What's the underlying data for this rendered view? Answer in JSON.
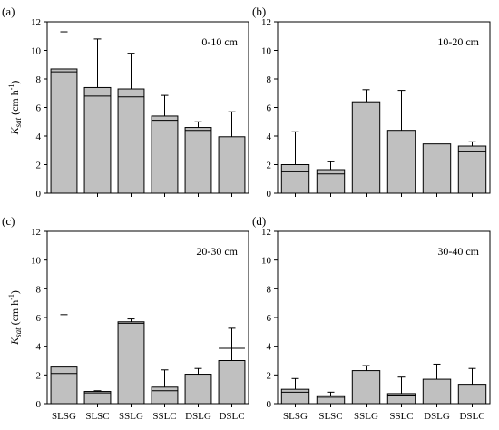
{
  "chart_data": [
    {
      "type": "bar",
      "panel": "(a)",
      "depth": "0-10 cm",
      "ylabel": "K_sat (cm h^-1)",
      "ylim": [
        0,
        12
      ],
      "yticks": [
        0,
        2,
        4,
        6,
        8,
        10,
        12
      ],
      "categories": [
        "SLSG",
        "SLSC",
        "SSLG",
        "SSLC",
        "DSLG",
        "DSLC"
      ],
      "values": [
        8.7,
        7.4,
        7.3,
        5.4,
        4.6,
        3.95
      ],
      "error": [
        2.6,
        3.4,
        2.5,
        1.45,
        0.4,
        1.75
      ],
      "inner_lines": [
        8.5,
        6.8,
        6.75,
        5.1,
        4.4,
        null
      ],
      "bar_color": "#c0c0c0"
    },
    {
      "type": "bar",
      "panel": "(b)",
      "depth": "10-20 cm",
      "ylabel": "",
      "ylim": [
        0,
        12
      ],
      "yticks": [
        0,
        2,
        4,
        6,
        8,
        10,
        12
      ],
      "categories": [
        "SLSG",
        "SLSC",
        "SSLG",
        "SSLC",
        "DSLG",
        "DSLC"
      ],
      "values": [
        2.0,
        1.65,
        6.4,
        4.4,
        3.45,
        3.3
      ],
      "error": [
        2.3,
        0.55,
        0.85,
        2.8,
        0.0,
        0.3
      ],
      "inner_lines": [
        1.5,
        1.35,
        null,
        null,
        null,
        2.9
      ],
      "bar_color": "#c0c0c0"
    },
    {
      "type": "bar",
      "panel": "(c)",
      "depth": "20-30 cm",
      "ylabel": "K_sat (cm h^-1)",
      "ylim": [
        0,
        12
      ],
      "yticks": [
        0,
        2,
        4,
        6,
        8,
        10,
        12
      ],
      "categories": [
        "SLSG",
        "SLSC",
        "SSLG",
        "SSLC",
        "DSLG",
        "DSLC"
      ],
      "values": [
        2.55,
        0.85,
        5.7,
        1.15,
        2.05,
        3.0
      ],
      "error": [
        3.65,
        0.05,
        0.2,
        1.2,
        0.4,
        2.25
      ],
      "inner_lines": [
        2.1,
        0.75,
        5.6,
        0.9,
        null,
        3.85
      ],
      "bar_color": "#c0c0c0"
    },
    {
      "type": "bar",
      "panel": "(d)",
      "depth": "30-40 cm",
      "ylabel": "",
      "ylim": [
        0,
        12
      ],
      "yticks": [
        0,
        2,
        4,
        6,
        8,
        10,
        12
      ],
      "categories": [
        "SLSG",
        "SLSC",
        "SSLG",
        "SSLC",
        "DSLG",
        "DSLC"
      ],
      "values": [
        1.0,
        0.55,
        2.3,
        0.7,
        1.7,
        1.35
      ],
      "error": [
        0.75,
        0.25,
        0.35,
        1.15,
        1.05,
        1.1
      ],
      "inner_lines": [
        0.8,
        0.45,
        null,
        0.6,
        null,
        null
      ],
      "bar_color": "#c0c0c0"
    }
  ],
  "ylabel_text": {
    "k": "K",
    "sub": "sat",
    "unit_open": " (cm h",
    "unit_sup": "-1",
    "unit_close": ")"
  }
}
